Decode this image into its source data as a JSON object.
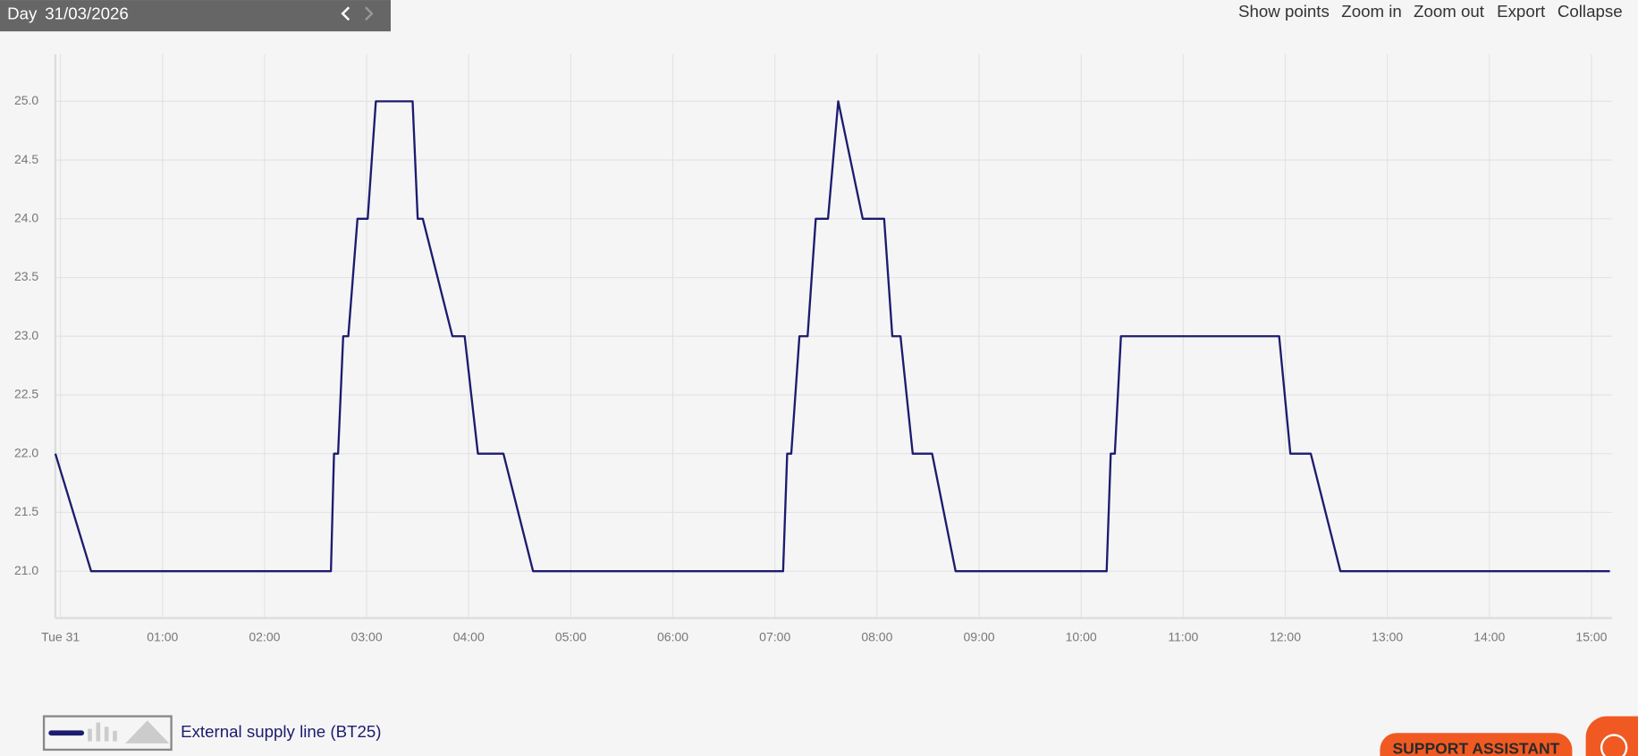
{
  "toolbar": {
    "period": "Day",
    "date": "31/03/2026",
    "buttons": [
      "Show points",
      "Zoom in",
      "Zoom out",
      "Export",
      "Collapse"
    ]
  },
  "support_button": "SUPPORT ASSISTANT",
  "chart_data": {
    "type": "line",
    "x": [
      -0.05,
      0.3,
      2.65,
      2.68,
      2.72,
      2.77,
      2.82,
      2.91,
      3.01,
      3.09,
      3.45,
      3.5,
      3.55,
      3.84,
      3.96,
      4.09,
      4.34,
      4.63,
      7.08,
      7.12,
      7.16,
      7.24,
      7.32,
      7.4,
      7.52,
      7.62,
      7.86,
      8.07,
      8.15,
      8.23,
      8.35,
      8.54,
      8.77,
      10.25,
      10.29,
      10.33,
      10.39,
      11.94,
      12.05,
      12.25,
      12.54,
      15.18
    ],
    "series": [
      {
        "name": "External supply line (BT25)",
        "color": "#1c1c6e",
        "values": [
          22,
          21,
          21,
          22,
          22,
          23,
          23,
          24,
          24,
          25,
          25,
          24,
          24,
          23,
          23,
          22,
          22,
          21,
          21,
          22,
          22,
          23,
          23,
          24,
          24,
          25,
          24,
          24,
          23,
          23,
          22,
          22,
          21,
          21,
          22,
          22,
          23,
          23,
          22,
          22,
          21,
          21
        ]
      }
    ],
    "xlim": [
      -0.05,
      15.2
    ],
    "xticks": [
      {
        "value": 0,
        "label": "Tue 31"
      },
      {
        "value": 1,
        "label": "01:00"
      },
      {
        "value": 2,
        "label": "02:00"
      },
      {
        "value": 3,
        "label": "03:00"
      },
      {
        "value": 4,
        "label": "04:00"
      },
      {
        "value": 5,
        "label": "05:00"
      },
      {
        "value": 6,
        "label": "06:00"
      },
      {
        "value": 7,
        "label": "07:00"
      },
      {
        "value": 8,
        "label": "08:00"
      },
      {
        "value": 9,
        "label": "09:00"
      },
      {
        "value": 10,
        "label": "10:00"
      },
      {
        "value": 11,
        "label": "11:00"
      },
      {
        "value": 12,
        "label": "12:00"
      },
      {
        "value": 13,
        "label": "13:00"
      },
      {
        "value": 14,
        "label": "14:00"
      },
      {
        "value": 15,
        "label": "15:00"
      }
    ],
    "ylim": [
      20.6,
      25.4
    ],
    "yticks": [
      {
        "value": 21,
        "label": "21.0"
      },
      21.5,
      {
        "value": 22,
        "label": "22.0"
      },
      22.5,
      {
        "value": 23,
        "label": "23.0"
      },
      23.5,
      {
        "value": 24,
        "label": "24.0"
      },
      24.5,
      {
        "value": 25,
        "label": "25.0"
      }
    ],
    "grid": true
  }
}
